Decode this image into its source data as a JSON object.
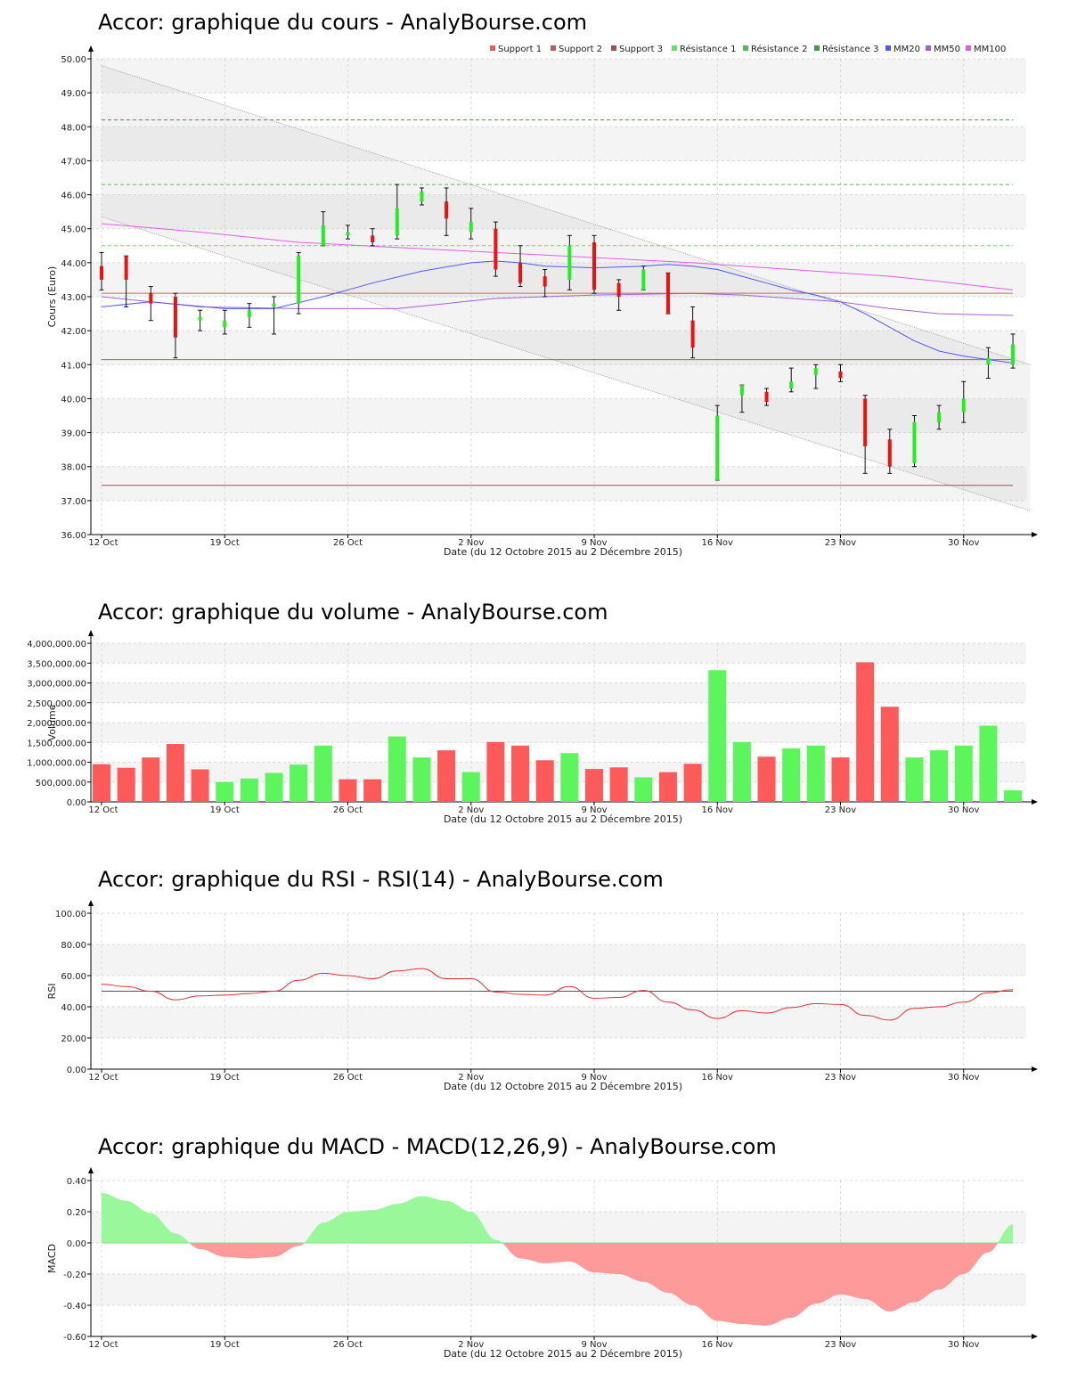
{
  "chart_data": [
    {
      "id": "price",
      "type": "candlestick",
      "title": "Accor: graphique du cours - AnalyBourse.com",
      "ylabel": "Cours (Euro)",
      "xlabel": "Date (du 12 Octobre 2015 au 2 Décembre 2015)",
      "ylim": [
        36,
        50
      ],
      "yticks": [
        "36.00",
        "37.00",
        "38.00",
        "39.00",
        "40.00",
        "41.00",
        "42.00",
        "43.00",
        "44.00",
        "45.00",
        "46.00",
        "47.00",
        "48.00",
        "49.00",
        "50.00"
      ],
      "xtick_labels": [
        "12 Oct",
        "19 Oct",
        "26 Oct",
        "2 Nov",
        "9 Nov",
        "16 Nov",
        "23 Nov",
        "30 Nov"
      ],
      "xtick_index": [
        0,
        5,
        10,
        15,
        20,
        25,
        30,
        35
      ],
      "legend_position": "top-right",
      "legend": [
        {
          "label": "Support 1",
          "color": "#e06060"
        },
        {
          "label": "Support 2",
          "color": "#b06060"
        },
        {
          "label": "Support 3",
          "color": "#a05050"
        },
        {
          "label": "Résistance 1",
          "color": "#66e066"
        },
        {
          "label": "Résistance 2",
          "color": "#55bb55"
        },
        {
          "label": "Résistance 3",
          "color": "#449944"
        },
        {
          "label": "MM20",
          "color": "#5555ff"
        },
        {
          "label": "MM50",
          "color": "#a060e0"
        },
        {
          "label": "MM100",
          "color": "#e060e0"
        }
      ],
      "candles": [
        {
          "o": 43.9,
          "h": 44.3,
          "l": 43.2,
          "c": 43.5
        },
        {
          "o": 44.2,
          "h": 44.2,
          "l": 42.7,
          "c": 43.5
        },
        {
          "o": 43.1,
          "h": 43.3,
          "l": 42.3,
          "c": 42.8
        },
        {
          "o": 43.0,
          "h": 43.1,
          "l": 41.2,
          "c": 41.8
        },
        {
          "o": 42.3,
          "h": 42.6,
          "l": 42.0,
          "c": 42.4
        },
        {
          "o": 42.1,
          "h": 42.6,
          "l": 41.9,
          "c": 42.3
        },
        {
          "o": 42.4,
          "h": 42.8,
          "l": 42.1,
          "c": 42.6
        },
        {
          "o": 42.7,
          "h": 43.0,
          "l": 41.9,
          "c": 42.8
        },
        {
          "o": 42.8,
          "h": 44.3,
          "l": 42.5,
          "c": 44.2
        },
        {
          "o": 44.5,
          "h": 45.5,
          "l": 44.5,
          "c": 45.1
        },
        {
          "o": 44.8,
          "h": 45.1,
          "l": 44.7,
          "c": 44.9
        },
        {
          "o": 44.8,
          "h": 45.0,
          "l": 44.5,
          "c": 44.6
        },
        {
          "o": 44.8,
          "h": 46.3,
          "l": 44.7,
          "c": 45.6
        },
        {
          "o": 45.8,
          "h": 46.2,
          "l": 45.7,
          "c": 46.1
        },
        {
          "o": 45.8,
          "h": 46.2,
          "l": 44.8,
          "c": 45.3
        },
        {
          "o": 44.9,
          "h": 45.6,
          "l": 44.7,
          "c": 45.2
        },
        {
          "o": 45.0,
          "h": 45.2,
          "l": 43.6,
          "c": 43.8
        },
        {
          "o": 44.0,
          "h": 44.5,
          "l": 43.3,
          "c": 43.4
        },
        {
          "o": 43.6,
          "h": 43.8,
          "l": 43.0,
          "c": 43.3
        },
        {
          "o": 43.5,
          "h": 44.8,
          "l": 43.2,
          "c": 44.5
        },
        {
          "o": 44.6,
          "h": 44.8,
          "l": 43.1,
          "c": 43.2
        },
        {
          "o": 43.4,
          "h": 43.5,
          "l": 42.6,
          "c": 43.0
        },
        {
          "o": 43.2,
          "h": 43.9,
          "l": 43.2,
          "c": 43.8
        },
        {
          "o": 43.7,
          "h": 43.7,
          "l": 42.5,
          "c": 42.5
        },
        {
          "o": 42.3,
          "h": 42.7,
          "l": 41.2,
          "c": 41.5
        },
        {
          "o": 37.6,
          "h": 39.8,
          "l": 37.6,
          "c": 39.5
        },
        {
          "o": 40.1,
          "h": 40.4,
          "l": 39.6,
          "c": 40.4
        },
        {
          "o": 40.2,
          "h": 40.3,
          "l": 39.8,
          "c": 39.9
        },
        {
          "o": 40.3,
          "h": 40.9,
          "l": 40.2,
          "c": 40.5
        },
        {
          "o": 40.7,
          "h": 41.0,
          "l": 40.3,
          "c": 40.9
        },
        {
          "o": 40.8,
          "h": 41.0,
          "l": 40.5,
          "c": 40.6
        },
        {
          "o": 40.0,
          "h": 40.1,
          "l": 37.8,
          "c": 38.6
        },
        {
          "o": 38.8,
          "h": 39.1,
          "l": 37.8,
          "c": 38.0
        },
        {
          "o": 38.1,
          "h": 39.5,
          "l": 38.0,
          "c": 39.3
        },
        {
          "o": 39.3,
          "h": 39.8,
          "l": 39.1,
          "c": 39.6
        },
        {
          "o": 39.6,
          "h": 40.5,
          "l": 39.3,
          "c": 40.0
        },
        {
          "o": 41.0,
          "h": 41.5,
          "l": 40.6,
          "c": 41.2
        },
        {
          "o": 41.0,
          "h": 41.9,
          "l": 40.9,
          "c": 41.6
        }
      ],
      "mm20": [
        [
          0,
          42.7
        ],
        [
          2,
          42.85
        ],
        [
          5,
          42.65
        ],
        [
          7,
          42.65
        ],
        [
          9,
          43.0
        ],
        [
          11,
          43.4
        ],
        [
          13,
          43.75
        ],
        [
          15,
          44.0
        ],
        [
          16,
          44.05
        ],
        [
          17,
          44.0
        ],
        [
          18,
          43.9
        ],
        [
          20,
          43.85
        ],
        [
          22,
          43.9
        ],
        [
          23,
          43.95
        ],
        [
          24,
          43.9
        ],
        [
          25,
          43.8
        ],
        [
          26,
          43.6
        ],
        [
          27,
          43.4
        ],
        [
          28,
          43.2
        ],
        [
          29,
          43.05
        ],
        [
          30,
          42.85
        ],
        [
          31,
          42.5
        ],
        [
          32,
          42.1
        ],
        [
          33,
          41.7
        ],
        [
          34,
          41.4
        ],
        [
          35,
          41.25
        ],
        [
          36,
          41.15
        ],
        [
          37,
          41.05
        ]
      ],
      "mm50": [
        [
          0,
          43.0
        ],
        [
          4,
          42.7
        ],
        [
          8,
          42.65
        ],
        [
          12,
          42.65
        ],
        [
          16,
          42.95
        ],
        [
          20,
          43.05
        ],
        [
          24,
          43.1
        ],
        [
          26,
          43.05
        ],
        [
          28,
          42.95
        ],
        [
          30,
          42.85
        ],
        [
          32,
          42.65
        ],
        [
          34,
          42.5
        ],
        [
          37,
          42.45
        ]
      ],
      "mm100": [
        [
          0,
          45.15
        ],
        [
          4,
          44.9
        ],
        [
          8,
          44.6
        ],
        [
          12,
          44.45
        ],
        [
          16,
          44.3
        ],
        [
          20,
          44.15
        ],
        [
          24,
          44.0
        ],
        [
          28,
          43.8
        ],
        [
          32,
          43.6
        ],
        [
          34,
          43.45
        ],
        [
          37,
          43.2
        ]
      ],
      "supports": [
        43.1,
        41.15,
        37.45
      ],
      "resistances": [
        44.5,
        46.3,
        48.2
      ],
      "channel_upper": [
        [
          0,
          49.8
        ],
        [
          37.7,
          41.0
        ]
      ],
      "channel_lower": [
        [
          0,
          45.35
        ],
        [
          37.7,
          36.7
        ]
      ]
    },
    {
      "id": "volume",
      "type": "bar",
      "title": "Accor: graphique du volume - AnalyBourse.com",
      "ylabel": "Volume",
      "xlabel": "Date (du 12 Octobre 2015 au 2 Décembre 2015)",
      "ylim": [
        0,
        4000000
      ],
      "yticks": [
        "0.00",
        "500,000.00",
        "1,000,000.00",
        "1,500,000.00",
        "2,000,000.00",
        "2,500,000.00",
        "3,000,000.00",
        "3,500,000.00",
        "4,000,000.00"
      ],
      "xtick_labels": [
        "12 Oct",
        "19 Oct",
        "26 Oct",
        "2 Nov",
        "9 Nov",
        "16 Nov",
        "23 Nov",
        "30 Nov"
      ],
      "xtick_index": [
        0,
        5,
        10,
        15,
        20,
        25,
        30,
        35
      ],
      "values": [
        950000,
        860000,
        1120000,
        1460000,
        820000,
        500000,
        590000,
        730000,
        940000,
        1420000,
        570000,
        570000,
        1650000,
        1120000,
        1300000,
        750000,
        1510000,
        1420000,
        1050000,
        1230000,
        830000,
        870000,
        620000,
        750000,
        960000,
        3320000,
        1510000,
        1140000,
        1350000,
        1420000,
        1120000,
        3520000,
        2400000,
        1120000,
        1300000,
        1420000,
        1920000,
        290000
      ],
      "up": [
        false,
        false,
        false,
        false,
        false,
        true,
        true,
        true,
        true,
        true,
        false,
        false,
        true,
        true,
        false,
        true,
        false,
        false,
        false,
        true,
        false,
        false,
        true,
        false,
        false,
        true,
        true,
        false,
        true,
        true,
        false,
        false,
        false,
        true,
        true,
        true,
        true,
        true
      ],
      "colors": {
        "up": "#5cf55c",
        "down": "#ff5a5a"
      }
    },
    {
      "id": "rsi",
      "type": "line",
      "title": "Accor: graphique du RSI - RSI(14) - AnalyBourse.com",
      "ylabel": "RSI",
      "xlabel": "Date (du 12 Octobre 2015 au 2 Décembre 2015)",
      "ylim": [
        0,
        100
      ],
      "yticks": [
        "0.00",
        "20.00",
        "40.00",
        "60.00",
        "80.00",
        "100.00"
      ],
      "xtick_labels": [
        "12 Oct",
        "19 Oct",
        "26 Oct",
        "2 Nov",
        "9 Nov",
        "16 Nov",
        "23 Nov",
        "30 Nov"
      ],
      "xtick_index": [
        0,
        5,
        10,
        15,
        20,
        25,
        30,
        35
      ],
      "reference": 50,
      "values": [
        54.5,
        53,
        50,
        44.5,
        47,
        47.5,
        48.5,
        50,
        57,
        61.5,
        60,
        58,
        63,
        64.5,
        58,
        58,
        49.5,
        48,
        47.5,
        53,
        45.5,
        46,
        50.5,
        43,
        38,
        32.5,
        37.5,
        36,
        39.5,
        42,
        41.5,
        34.5,
        31.5,
        39,
        40,
        43,
        49,
        51
      ],
      "color": "#e03030"
    },
    {
      "id": "macd",
      "type": "area",
      "title": "Accor: graphique du MACD - MACD(12,26,9) - AnalyBourse.com",
      "ylabel": "MACD",
      "xlabel": "Date (du 12 Octobre 2015 au 2 Décembre 2015)",
      "ylim": [
        -0.6,
        0.4
      ],
      "yticks": [
        "-0.60",
        "-0.40",
        "-0.20",
        "0.00",
        "0.20",
        "0.40"
      ],
      "xtick_labels": [
        "12 Oct",
        "19 Oct",
        "26 Oct",
        "2 Nov",
        "9 Nov",
        "16 Nov",
        "23 Nov",
        "30 Nov"
      ],
      "xtick_index": [
        0,
        5,
        10,
        15,
        20,
        25,
        30,
        35
      ],
      "values": [
        0.32,
        0.27,
        0.19,
        0.06,
        -0.04,
        -0.09,
        -0.1,
        -0.09,
        -0.02,
        0.13,
        0.2,
        0.21,
        0.25,
        0.3,
        0.27,
        0.2,
        0.02,
        -0.1,
        -0.13,
        -0.12,
        -0.19,
        -0.2,
        -0.25,
        -0.32,
        -0.4,
        -0.5,
        -0.52,
        -0.53,
        -0.48,
        -0.39,
        -0.33,
        -0.36,
        -0.44,
        -0.38,
        -0.3,
        -0.2,
        -0.06,
        0.12
      ],
      "colors": {
        "positive": "#99f899",
        "negative": "#ff9a9a"
      }
    }
  ]
}
